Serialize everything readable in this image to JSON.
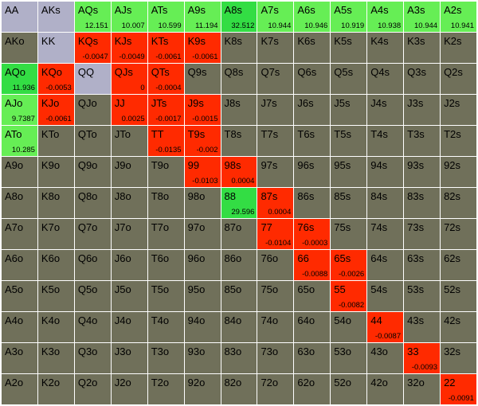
{
  "grid": [
    [
      {
        "hand": "AA",
        "value": "",
        "color": "fold"
      },
      {
        "hand": "AKs",
        "value": "",
        "color": "fold"
      },
      {
        "hand": "AQs",
        "value": "12.151",
        "color": "pos2"
      },
      {
        "hand": "AJs",
        "value": "10.007",
        "color": "pos2"
      },
      {
        "hand": "ATs",
        "value": "10.599",
        "color": "pos2"
      },
      {
        "hand": "A9s",
        "value": "11.194",
        "color": "pos2"
      },
      {
        "hand": "A8s",
        "value": "32.512",
        "color": "pos"
      },
      {
        "hand": "A7s",
        "value": "10.944",
        "color": "pos2"
      },
      {
        "hand": "A6s",
        "value": "10.946",
        "color": "pos2"
      },
      {
        "hand": "A5s",
        "value": "10.919",
        "color": "pos2"
      },
      {
        "hand": "A4s",
        "value": "10.938",
        "color": "pos2"
      },
      {
        "hand": "A3s",
        "value": "10.944",
        "color": "pos2"
      },
      {
        "hand": "A2s",
        "value": "10.941",
        "color": "pos2"
      }
    ],
    [
      {
        "hand": "AKo",
        "value": "",
        "color": "neutral"
      },
      {
        "hand": "KK",
        "value": "",
        "color": "fold"
      },
      {
        "hand": "KQs",
        "value": "-0.0047",
        "color": "neg"
      },
      {
        "hand": "KJs",
        "value": "-0.0049",
        "color": "neg"
      },
      {
        "hand": "KTs",
        "value": "-0.0061",
        "color": "neg"
      },
      {
        "hand": "K9s",
        "value": "-0.0061",
        "color": "neg"
      },
      {
        "hand": "K8s",
        "value": "",
        "color": "neutral"
      },
      {
        "hand": "K7s",
        "value": "",
        "color": "neutral"
      },
      {
        "hand": "K6s",
        "value": "",
        "color": "neutral"
      },
      {
        "hand": "K5s",
        "value": "",
        "color": "neutral"
      },
      {
        "hand": "K4s",
        "value": "",
        "color": "neutral"
      },
      {
        "hand": "K3s",
        "value": "",
        "color": "neutral"
      },
      {
        "hand": "K2s",
        "value": "",
        "color": "neutral"
      }
    ],
    [
      {
        "hand": "AQo",
        "value": "11.936",
        "color": "pos"
      },
      {
        "hand": "KQo",
        "value": "-0.0053",
        "color": "neg"
      },
      {
        "hand": "QQ",
        "value": "",
        "color": "fold"
      },
      {
        "hand": "QJs",
        "value": "0",
        "color": "neg"
      },
      {
        "hand": "QTs",
        "value": "-0.0004",
        "color": "neg"
      },
      {
        "hand": "Q9s",
        "value": "",
        "color": "neutral"
      },
      {
        "hand": "Q8s",
        "value": "",
        "color": "neutral"
      },
      {
        "hand": "Q7s",
        "value": "",
        "color": "neutral"
      },
      {
        "hand": "Q6s",
        "value": "",
        "color": "neutral"
      },
      {
        "hand": "Q5s",
        "value": "",
        "color": "neutral"
      },
      {
        "hand": "Q4s",
        "value": "",
        "color": "neutral"
      },
      {
        "hand": "Q3s",
        "value": "",
        "color": "neutral"
      },
      {
        "hand": "Q2s",
        "value": "",
        "color": "neutral"
      }
    ],
    [
      {
        "hand": "AJo",
        "value": "9.7387",
        "color": "pos2"
      },
      {
        "hand": "KJo",
        "value": "-0.0061",
        "color": "neg"
      },
      {
        "hand": "QJo",
        "value": "",
        "color": "neutral"
      },
      {
        "hand": "JJ",
        "value": "0.0025",
        "color": "neg"
      },
      {
        "hand": "JTs",
        "value": "-0.0017",
        "color": "neg"
      },
      {
        "hand": "J9s",
        "value": "-0.0015",
        "color": "neg"
      },
      {
        "hand": "J8s",
        "value": "",
        "color": "neutral"
      },
      {
        "hand": "J7s",
        "value": "",
        "color": "neutral"
      },
      {
        "hand": "J6s",
        "value": "",
        "color": "neutral"
      },
      {
        "hand": "J5s",
        "value": "",
        "color": "neutral"
      },
      {
        "hand": "J4s",
        "value": "",
        "color": "neutral"
      },
      {
        "hand": "J3s",
        "value": "",
        "color": "neutral"
      },
      {
        "hand": "J2s",
        "value": "",
        "color": "neutral"
      }
    ],
    [
      {
        "hand": "ATo",
        "value": "10.285",
        "color": "pos2"
      },
      {
        "hand": "KTo",
        "value": "",
        "color": "neutral"
      },
      {
        "hand": "QTo",
        "value": "",
        "color": "neutral"
      },
      {
        "hand": "JTo",
        "value": "",
        "color": "neutral"
      },
      {
        "hand": "TT",
        "value": "-0.0135",
        "color": "neg"
      },
      {
        "hand": "T9s",
        "value": "-0.002",
        "color": "neg"
      },
      {
        "hand": "T8s",
        "value": "",
        "color": "neutral"
      },
      {
        "hand": "T7s",
        "value": "",
        "color": "neutral"
      },
      {
        "hand": "T6s",
        "value": "",
        "color": "neutral"
      },
      {
        "hand": "T5s",
        "value": "",
        "color": "neutral"
      },
      {
        "hand": "T4s",
        "value": "",
        "color": "neutral"
      },
      {
        "hand": "T3s",
        "value": "",
        "color": "neutral"
      },
      {
        "hand": "T2s",
        "value": "",
        "color": "neutral"
      }
    ],
    [
      {
        "hand": "A9o",
        "value": "",
        "color": "neutral"
      },
      {
        "hand": "K9o",
        "value": "",
        "color": "neutral"
      },
      {
        "hand": "Q9o",
        "value": "",
        "color": "neutral"
      },
      {
        "hand": "J9o",
        "value": "",
        "color": "neutral"
      },
      {
        "hand": "T9o",
        "value": "",
        "color": "neutral"
      },
      {
        "hand": "99",
        "value": "-0.0103",
        "color": "neg"
      },
      {
        "hand": "98s",
        "value": "0.0004",
        "color": "neg"
      },
      {
        "hand": "97s",
        "value": "",
        "color": "neutral"
      },
      {
        "hand": "96s",
        "value": "",
        "color": "neutral"
      },
      {
        "hand": "95s",
        "value": "",
        "color": "neutral"
      },
      {
        "hand": "94s",
        "value": "",
        "color": "neutral"
      },
      {
        "hand": "93s",
        "value": "",
        "color": "neutral"
      },
      {
        "hand": "92s",
        "value": "",
        "color": "neutral"
      }
    ],
    [
      {
        "hand": "A8o",
        "value": "",
        "color": "neutral"
      },
      {
        "hand": "K8o",
        "value": "",
        "color": "neutral"
      },
      {
        "hand": "Q8o",
        "value": "",
        "color": "neutral"
      },
      {
        "hand": "J8o",
        "value": "",
        "color": "neutral"
      },
      {
        "hand": "T8o",
        "value": "",
        "color": "neutral"
      },
      {
        "hand": "98o",
        "value": "",
        "color": "neutral"
      },
      {
        "hand": "88",
        "value": "29.596",
        "color": "pos"
      },
      {
        "hand": "87s",
        "value": "0.0004",
        "color": "neg"
      },
      {
        "hand": "86s",
        "value": "",
        "color": "neutral"
      },
      {
        "hand": "85s",
        "value": "",
        "color": "neutral"
      },
      {
        "hand": "84s",
        "value": "",
        "color": "neutral"
      },
      {
        "hand": "83s",
        "value": "",
        "color": "neutral"
      },
      {
        "hand": "82s",
        "value": "",
        "color": "neutral"
      }
    ],
    [
      {
        "hand": "A7o",
        "value": "",
        "color": "neutral"
      },
      {
        "hand": "K7o",
        "value": "",
        "color": "neutral"
      },
      {
        "hand": "Q7o",
        "value": "",
        "color": "neutral"
      },
      {
        "hand": "J7o",
        "value": "",
        "color": "neutral"
      },
      {
        "hand": "T7o",
        "value": "",
        "color": "neutral"
      },
      {
        "hand": "97o",
        "value": "",
        "color": "neutral"
      },
      {
        "hand": "87o",
        "value": "",
        "color": "neutral"
      },
      {
        "hand": "77",
        "value": "-0.0104",
        "color": "neg"
      },
      {
        "hand": "76s",
        "value": "-0.0003",
        "color": "neg"
      },
      {
        "hand": "75s",
        "value": "",
        "color": "neutral"
      },
      {
        "hand": "74s",
        "value": "",
        "color": "neutral"
      },
      {
        "hand": "73s",
        "value": "",
        "color": "neutral"
      },
      {
        "hand": "72s",
        "value": "",
        "color": "neutral"
      }
    ],
    [
      {
        "hand": "A6o",
        "value": "",
        "color": "neutral"
      },
      {
        "hand": "K6o",
        "value": "",
        "color": "neutral"
      },
      {
        "hand": "Q6o",
        "value": "",
        "color": "neutral"
      },
      {
        "hand": "J6o",
        "value": "",
        "color": "neutral"
      },
      {
        "hand": "T6o",
        "value": "",
        "color": "neutral"
      },
      {
        "hand": "96o",
        "value": "",
        "color": "neutral"
      },
      {
        "hand": "86o",
        "value": "",
        "color": "neutral"
      },
      {
        "hand": "76o",
        "value": "",
        "color": "neutral"
      },
      {
        "hand": "66",
        "value": "-0.0088",
        "color": "neg"
      },
      {
        "hand": "65s",
        "value": "-0.0026",
        "color": "neg"
      },
      {
        "hand": "64s",
        "value": "",
        "color": "neutral"
      },
      {
        "hand": "63s",
        "value": "",
        "color": "neutral"
      },
      {
        "hand": "62s",
        "value": "",
        "color": "neutral"
      }
    ],
    [
      {
        "hand": "A5o",
        "value": "",
        "color": "neutral"
      },
      {
        "hand": "K5o",
        "value": "",
        "color": "neutral"
      },
      {
        "hand": "Q5o",
        "value": "",
        "color": "neutral"
      },
      {
        "hand": "J5o",
        "value": "",
        "color": "neutral"
      },
      {
        "hand": "T5o",
        "value": "",
        "color": "neutral"
      },
      {
        "hand": "95o",
        "value": "",
        "color": "neutral"
      },
      {
        "hand": "85o",
        "value": "",
        "color": "neutral"
      },
      {
        "hand": "75o",
        "value": "",
        "color": "neutral"
      },
      {
        "hand": "65o",
        "value": "",
        "color": "neutral"
      },
      {
        "hand": "55",
        "value": "-0.0082",
        "color": "neg"
      },
      {
        "hand": "54s",
        "value": "",
        "color": "neutral"
      },
      {
        "hand": "53s",
        "value": "",
        "color": "neutral"
      },
      {
        "hand": "52s",
        "value": "",
        "color": "neutral"
      }
    ],
    [
      {
        "hand": "A4o",
        "value": "",
        "color": "neutral"
      },
      {
        "hand": "K4o",
        "value": "",
        "color": "neutral"
      },
      {
        "hand": "Q4o",
        "value": "",
        "color": "neutral"
      },
      {
        "hand": "J4o",
        "value": "",
        "color": "neutral"
      },
      {
        "hand": "T4o",
        "value": "",
        "color": "neutral"
      },
      {
        "hand": "94o",
        "value": "",
        "color": "neutral"
      },
      {
        "hand": "84o",
        "value": "",
        "color": "neutral"
      },
      {
        "hand": "74o",
        "value": "",
        "color": "neutral"
      },
      {
        "hand": "64o",
        "value": "",
        "color": "neutral"
      },
      {
        "hand": "54o",
        "value": "",
        "color": "neutral"
      },
      {
        "hand": "44",
        "value": "-0.0087",
        "color": "neg"
      },
      {
        "hand": "43s",
        "value": "",
        "color": "neutral"
      },
      {
        "hand": "42s",
        "value": "",
        "color": "neutral"
      }
    ],
    [
      {
        "hand": "A3o",
        "value": "",
        "color": "neutral"
      },
      {
        "hand": "K3o",
        "value": "",
        "color": "neutral"
      },
      {
        "hand": "Q3o",
        "value": "",
        "color": "neutral"
      },
      {
        "hand": "J3o",
        "value": "",
        "color": "neutral"
      },
      {
        "hand": "T3o",
        "value": "",
        "color": "neutral"
      },
      {
        "hand": "93o",
        "value": "",
        "color": "neutral"
      },
      {
        "hand": "83o",
        "value": "",
        "color": "neutral"
      },
      {
        "hand": "73o",
        "value": "",
        "color": "neutral"
      },
      {
        "hand": "63o",
        "value": "",
        "color": "neutral"
      },
      {
        "hand": "53o",
        "value": "",
        "color": "neutral"
      },
      {
        "hand": "43o",
        "value": "",
        "color": "neutral"
      },
      {
        "hand": "33",
        "value": "-0.0093",
        "color": "neg"
      },
      {
        "hand": "32s",
        "value": "",
        "color": "neutral"
      }
    ],
    [
      {
        "hand": "A2o",
        "value": "",
        "color": "neutral"
      },
      {
        "hand": "K2o",
        "value": "",
        "color": "neutral"
      },
      {
        "hand": "Q2o",
        "value": "",
        "color": "neutral"
      },
      {
        "hand": "J2o",
        "value": "",
        "color": "neutral"
      },
      {
        "hand": "T2o",
        "value": "",
        "color": "neutral"
      },
      {
        "hand": "92o",
        "value": "",
        "color": "neutral"
      },
      {
        "hand": "82o",
        "value": "",
        "color": "neutral"
      },
      {
        "hand": "72o",
        "value": "",
        "color": "neutral"
      },
      {
        "hand": "62o",
        "value": "",
        "color": "neutral"
      },
      {
        "hand": "52o",
        "value": "",
        "color": "neutral"
      },
      {
        "hand": "42o",
        "value": "",
        "color": "neutral"
      },
      {
        "hand": "32o",
        "value": "",
        "color": "neutral"
      },
      {
        "hand": "22",
        "value": "-0.0091",
        "color": "neg"
      }
    ]
  ],
  "palette": {
    "neutral": "#70705a",
    "fold": "#b0b0c8",
    "pos": "#33dd44",
    "pos2": "#66ee55",
    "neg": "#ff2a00"
  }
}
